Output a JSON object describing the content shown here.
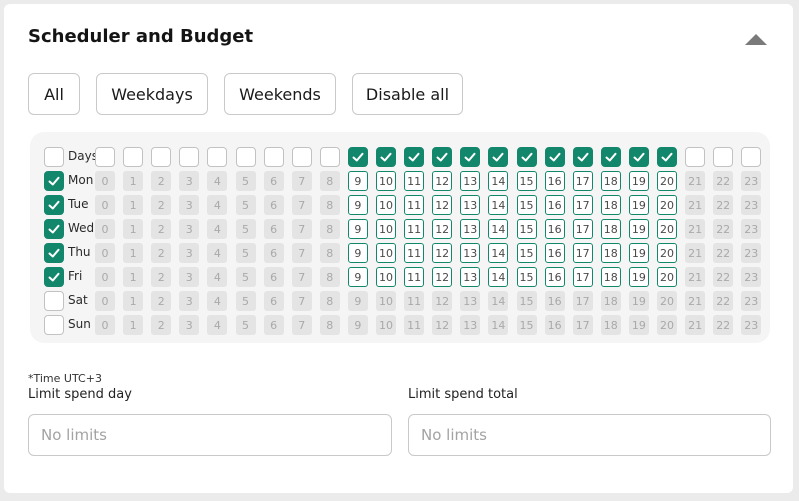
{
  "title": "Scheduler and Budget",
  "icons": {
    "collapse": "chevron-up-icon",
    "check": "check-icon"
  },
  "presets": [
    "All",
    "Weekdays",
    "Weekends",
    "Disable all"
  ],
  "grid": {
    "header_label": "Days",
    "hours": [
      "0",
      "1",
      "2",
      "3",
      "4",
      "5",
      "6",
      "7",
      "8",
      "9",
      "10",
      "11",
      "12",
      "13",
      "14",
      "15",
      "16",
      "17",
      "18",
      "19",
      "20",
      "21",
      "22",
      "23"
    ],
    "active_hours": [
      9,
      10,
      11,
      12,
      13,
      14,
      15,
      16,
      17,
      18,
      19,
      20
    ],
    "days": [
      {
        "label": "Mon",
        "checked": true
      },
      {
        "label": "Tue",
        "checked": true
      },
      {
        "label": "Wed",
        "checked": true
      },
      {
        "label": "Thu",
        "checked": true
      },
      {
        "label": "Fri",
        "checked": true
      },
      {
        "label": "Sat",
        "checked": false
      },
      {
        "label": "Sun",
        "checked": false
      }
    ]
  },
  "timezone_note": "*Time UTC+3",
  "limits": {
    "day": {
      "label": "Limit spend day",
      "placeholder": "No limits"
    },
    "total": {
      "label": "Limit spend total",
      "placeholder": "No limits"
    }
  },
  "colors": {
    "accent": "#13876b",
    "inactive_cell": "#e4e4e4",
    "panel": "#f5f5f5"
  }
}
